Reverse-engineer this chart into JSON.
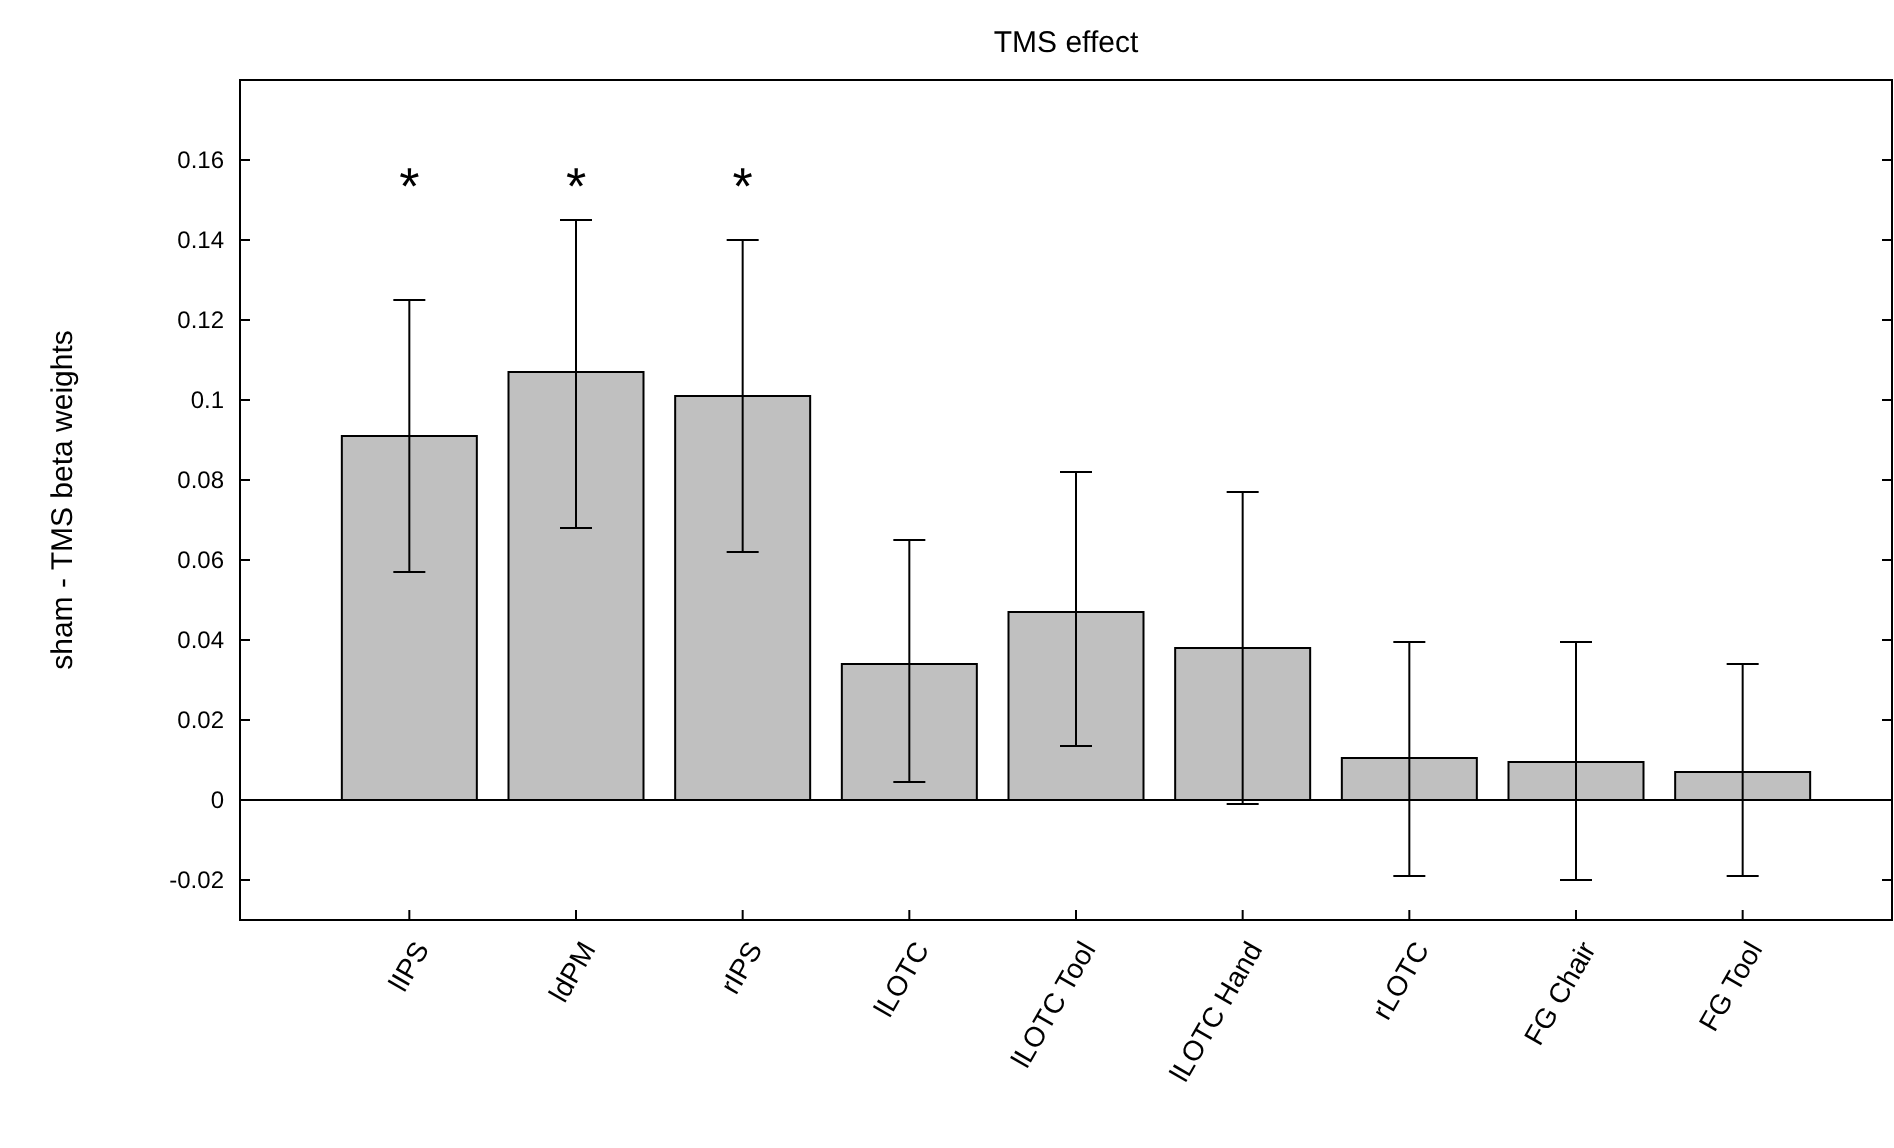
{
  "chart_data": {
    "type": "bar",
    "title": "TMS effect",
    "ylabel": "sham - TMS beta weights",
    "categories": [
      "lIPS",
      "ldPM",
      "rIPS",
      "lLOTC",
      "lLOTC Tool",
      "lLOTC Hand",
      "rLOTC",
      "FG Chair",
      "FG Tool"
    ],
    "values": [
      0.091,
      0.107,
      0.101,
      0.034,
      0.047,
      0.038,
      0.0105,
      0.0095,
      0.007
    ],
    "errors": [
      [
        0.057,
        0.125
      ],
      [
        0.068,
        0.145
      ],
      [
        0.062,
        0.14
      ],
      [
        0.0045,
        0.065
      ],
      [
        0.0135,
        0.082
      ],
      [
        -0.001,
        0.077
      ],
      [
        -0.019,
        0.0395
      ],
      [
        -0.02,
        0.0395
      ],
      [
        -0.019,
        0.034
      ]
    ],
    "color": "#c0c0c0",
    "ylim": [
      -0.03,
      0.18
    ],
    "yticks": [
      -0.02,
      0,
      0.02,
      0.04,
      0.06,
      0.08,
      0.1,
      0.12,
      0.14,
      0.16
    ],
    "ref_lines": [
      {
        "axis": "y",
        "value": 0
      }
    ],
    "annotations": [
      "*",
      "*",
      "*"
    ],
    "grid": false
  }
}
